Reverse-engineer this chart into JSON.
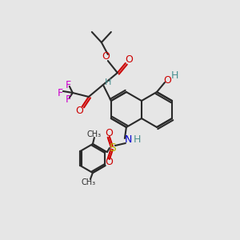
{
  "bg_color": "#e6e6e6",
  "dark": "#2a2a2a",
  "red": "#cc0000",
  "blue": "#0000cc",
  "magenta": "#cc00cc",
  "teal": "#4a9090",
  "yellow": "#b8b800",
  "BL": 22
}
